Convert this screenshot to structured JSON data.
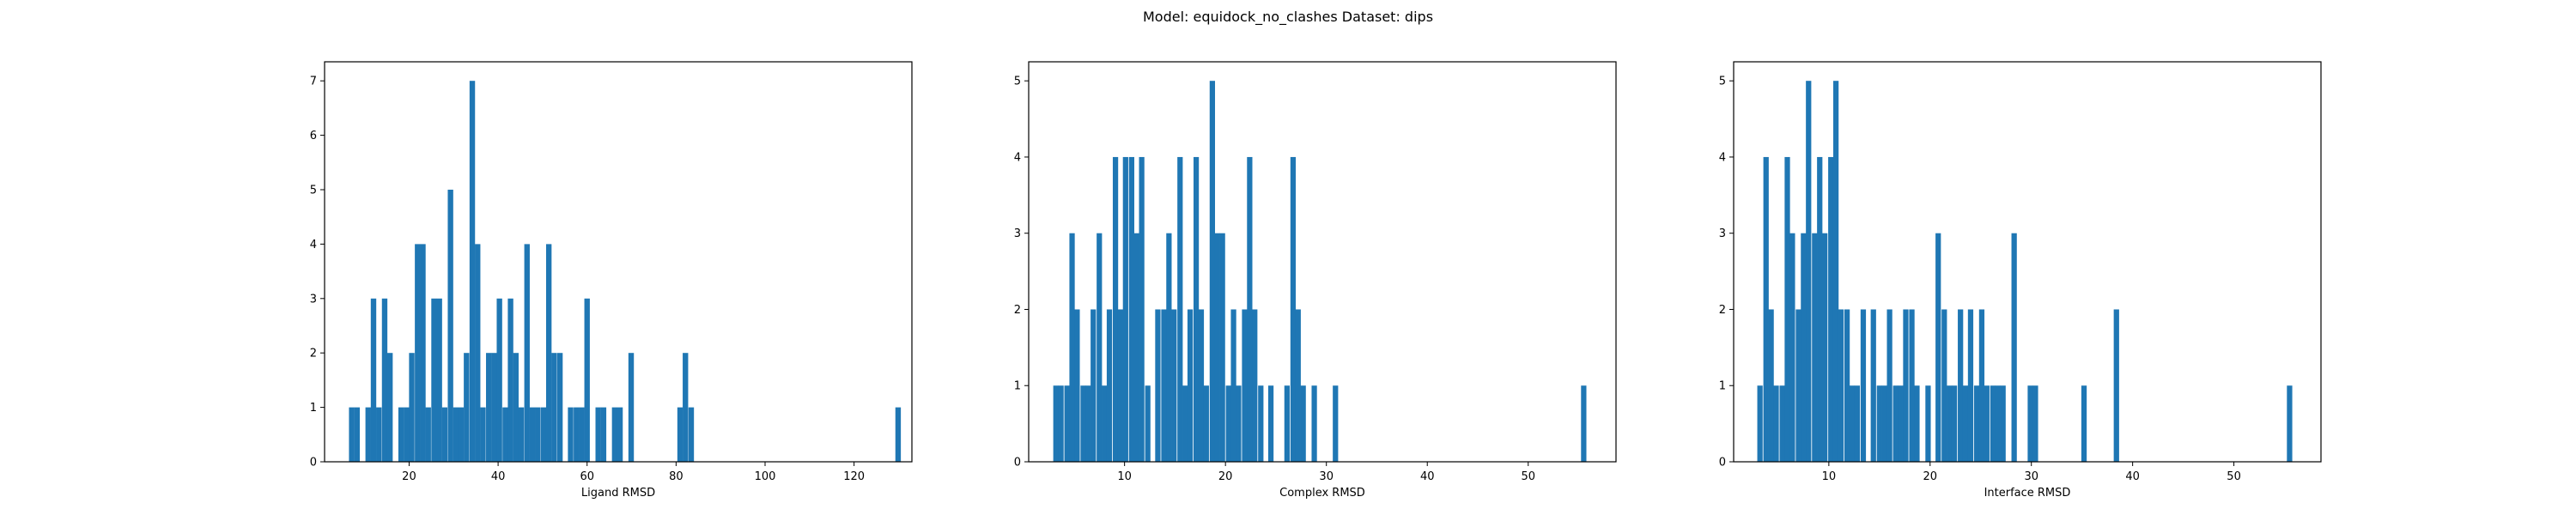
{
  "figure": {
    "title": "Model: equidock_no_clashes Dataset: dips"
  },
  "chart_data": [
    {
      "type": "bar",
      "subtype": "histogram",
      "xlabel": "Ligand RMSD",
      "ylabel": "",
      "xlim": [
        1,
        133
      ],
      "ylim": [
        0,
        7.35
      ],
      "xticks": [
        20,
        40,
        60,
        80,
        100,
        120
      ],
      "yticks": [
        0,
        1,
        2,
        3,
        4,
        5,
        6,
        7
      ],
      "bar_color": "#1f77b4",
      "bin_width": 1.23,
      "x": [
        7.1,
        8.3,
        10.8,
        12.0,
        13.2,
        14.5,
        15.7,
        18.2,
        19.4,
        20.6,
        21.9,
        23.1,
        24.3,
        25.6,
        26.8,
        28.0,
        29.3,
        30.5,
        31.7,
        32.9,
        34.2,
        35.4,
        36.6,
        37.9,
        39.1,
        40.3,
        41.6,
        42.8,
        44.0,
        45.2,
        46.5,
        47.7,
        48.9,
        50.2,
        51.4,
        52.6,
        53.9,
        56.3,
        57.6,
        58.8,
        60.0,
        62.5,
        63.7,
        66.2,
        67.4,
        69.9,
        80.9,
        82.1,
        83.4,
        129.9
      ],
      "values": [
        1,
        1,
        1,
        3,
        1,
        3,
        2,
        1,
        1,
        2,
        4,
        4,
        1,
        3,
        3,
        1,
        5,
        1,
        1,
        2,
        7,
        4,
        1,
        2,
        2,
        3,
        1,
        3,
        2,
        1,
        4,
        1,
        1,
        1,
        4,
        2,
        2,
        1,
        1,
        1,
        3,
        1,
        1,
        1,
        1,
        2,
        1,
        2,
        1,
        1
      ]
    },
    {
      "type": "bar",
      "subtype": "histogram",
      "xlabel": "Complex RMSD",
      "ylabel": "",
      "xlim": [
        0.5,
        58.7
      ],
      "ylim": [
        0,
        5.25
      ],
      "xticks": [
        10,
        20,
        30,
        40,
        50
      ],
      "yticks": [
        0,
        1,
        2,
        3,
        4,
        5
      ],
      "bar_color": "#1f77b4",
      "bin_width": 0.53,
      "x": [
        3.2,
        3.7,
        4.3,
        4.8,
        5.3,
        5.9,
        6.4,
        6.9,
        7.5,
        8.0,
        8.5,
        9.1,
        9.6,
        10.1,
        10.7,
        11.2,
        11.7,
        12.3,
        13.3,
        13.9,
        14.4,
        14.9,
        15.5,
        16.0,
        16.5,
        17.1,
        17.6,
        18.1,
        18.7,
        19.2,
        19.7,
        20.3,
        20.8,
        21.3,
        21.9,
        22.4,
        22.9,
        23.5,
        24.5,
        26.1,
        26.7,
        27.2,
        27.7,
        28.8,
        30.9,
        55.5
      ],
      "values": [
        1,
        1,
        1,
        3,
        2,
        1,
        1,
        2,
        3,
        1,
        2,
        4,
        2,
        4,
        4,
        3,
        4,
        1,
        2,
        2,
        3,
        2,
        4,
        1,
        2,
        4,
        2,
        1,
        5,
        3,
        3,
        1,
        2,
        1,
        2,
        4,
        2,
        1,
        1,
        1,
        4,
        2,
        1,
        1,
        1,
        1
      ]
    },
    {
      "type": "bar",
      "subtype": "histogram",
      "xlabel": "Interface RMSD",
      "ylabel": "",
      "xlim": [
        0.6,
        58.6
      ],
      "ylim": [
        0,
        5.25
      ],
      "xticks": [
        10,
        20,
        30,
        40,
        50
      ],
      "yticks": [
        0,
        1,
        2,
        3,
        4,
        5
      ],
      "bar_color": "#1f77b4",
      "bin_width": 0.53,
      "x": [
        3.2,
        3.8,
        4.3,
        4.8,
        5.4,
        5.9,
        6.4,
        7.0,
        7.5,
        8.0,
        8.6,
        9.1,
        9.6,
        10.2,
        10.7,
        11.2,
        11.8,
        12.3,
        12.8,
        13.4,
        14.4,
        15.0,
        15.5,
        16.0,
        16.6,
        17.1,
        17.6,
        18.2,
        18.7,
        19.8,
        20.8,
        21.4,
        21.9,
        22.4,
        23.0,
        23.5,
        24.0,
        24.6,
        25.1,
        25.6,
        26.2,
        26.7,
        27.2,
        28.3,
        29.9,
        30.4,
        35.2,
        38.4,
        55.5
      ],
      "values": [
        1,
        4,
        2,
        1,
        1,
        4,
        3,
        2,
        3,
        5,
        3,
        4,
        3,
        4,
        5,
        2,
        2,
        1,
        1,
        2,
        2,
        1,
        1,
        2,
        1,
        1,
        2,
        2,
        1,
        1,
        3,
        2,
        1,
        1,
        2,
        1,
        2,
        1,
        2,
        1,
        1,
        1,
        1,
        3,
        1,
        1,
        1,
        2,
        1
      ]
    }
  ]
}
